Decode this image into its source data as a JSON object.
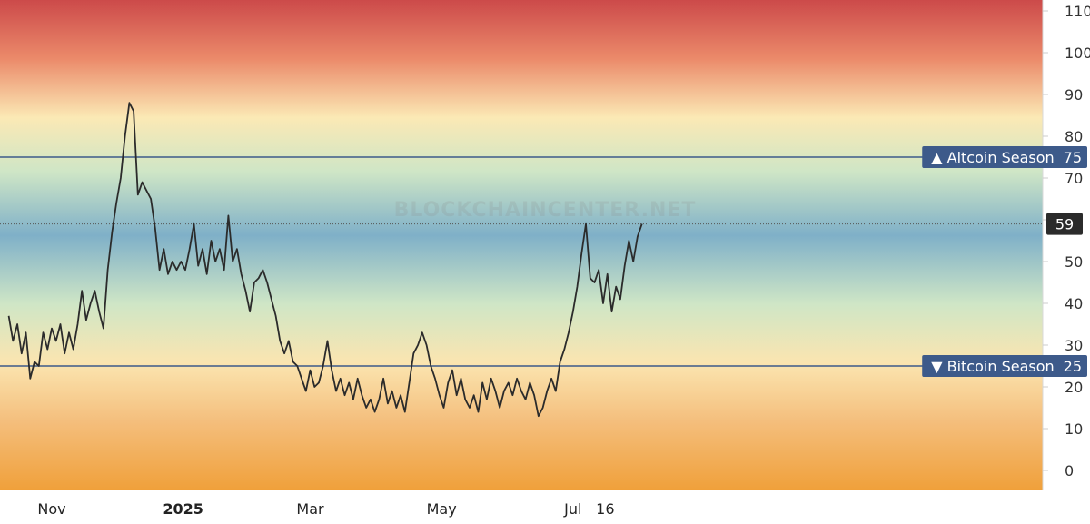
{
  "watermark": "BLOCKCHAINCENTER.NET",
  "colors": {
    "line": "#2b2b2b",
    "threshold_line": "#3d5a8a",
    "tag_bg": "#3d5a8a",
    "current_tag_bg": "#2b2b2b",
    "gradient": [
      "#cc4a4a",
      "#eb8a6a",
      "#fbe9b5",
      "#cfe6c6",
      "#7fb0c8",
      "#cfe6c6",
      "#fbe5b0",
      "#f4be7c",
      "#f0a03a"
    ]
  },
  "chart_data": {
    "type": "line",
    "title": "",
    "xlabel": "",
    "ylabel": "",
    "ylim": [
      -5,
      114
    ],
    "y_ticks": [
      "0",
      "10",
      "20",
      "30",
      "40",
      "50",
      "60",
      "70",
      "80",
      "90",
      "100",
      "110"
    ],
    "x_ticks": [
      {
        "label": "Nov",
        "date": "2024-11-01",
        "bold": false
      },
      {
        "label": "2025",
        "date": "2025-01-01",
        "bold": true
      },
      {
        "label": "Mar",
        "date": "2025-03-01",
        "bold": false
      },
      {
        "label": "May",
        "date": "2025-05-01",
        "bold": false
      },
      {
        "label": "Jul",
        "date": "2025-07-01",
        "bold": false
      },
      {
        "label": "16",
        "date": "2025-07-16",
        "bold": false
      }
    ],
    "thresholds": [
      {
        "label": "▲ Altcoin Season",
        "value": "75"
      },
      {
        "label": "▼ Bitcoin Season",
        "value": "25"
      }
    ],
    "current_value": "59",
    "grid": false,
    "series": [
      {
        "points": [
          [
            "2024-10-12",
            37
          ],
          [
            "2024-10-14",
            31
          ],
          [
            "2024-10-16",
            35
          ],
          [
            "2024-10-18",
            28
          ],
          [
            "2024-10-20",
            33
          ],
          [
            "2024-10-22",
            22
          ],
          [
            "2024-10-24",
            26
          ],
          [
            "2024-10-26",
            25
          ],
          [
            "2024-10-28",
            33
          ],
          [
            "2024-10-30",
            29
          ],
          [
            "2024-11-01",
            34
          ],
          [
            "2024-11-03",
            31
          ],
          [
            "2024-11-05",
            35
          ],
          [
            "2024-11-07",
            28
          ],
          [
            "2024-11-09",
            33
          ],
          [
            "2024-11-11",
            29
          ],
          [
            "2024-11-13",
            35
          ],
          [
            "2024-11-15",
            43
          ],
          [
            "2024-11-17",
            36
          ],
          [
            "2024-11-19",
            40
          ],
          [
            "2024-11-21",
            43
          ],
          [
            "2024-11-23",
            38
          ],
          [
            "2024-11-25",
            34
          ],
          [
            "2024-11-27",
            48
          ],
          [
            "2024-11-29",
            57
          ],
          [
            "2024-12-01",
            64
          ],
          [
            "2024-12-03",
            70
          ],
          [
            "2024-12-05",
            80
          ],
          [
            "2024-12-07",
            88
          ],
          [
            "2024-12-09",
            86
          ],
          [
            "2024-12-11",
            66
          ],
          [
            "2024-12-13",
            69
          ],
          [
            "2024-12-15",
            67
          ],
          [
            "2024-12-17",
            65
          ],
          [
            "2024-12-19",
            58
          ],
          [
            "2024-12-21",
            48
          ],
          [
            "2024-12-23",
            53
          ],
          [
            "2024-12-25",
            47
          ],
          [
            "2024-12-27",
            50
          ],
          [
            "2024-12-29",
            48
          ],
          [
            "2024-12-31",
            50
          ],
          [
            "2025-01-02",
            48
          ],
          [
            "2025-01-04",
            53
          ],
          [
            "2025-01-06",
            59
          ],
          [
            "2025-01-08",
            49
          ],
          [
            "2025-01-10",
            53
          ],
          [
            "2025-01-12",
            47
          ],
          [
            "2025-01-14",
            55
          ],
          [
            "2025-01-16",
            50
          ],
          [
            "2025-01-18",
            53
          ],
          [
            "2025-01-20",
            48
          ],
          [
            "2025-01-22",
            61
          ],
          [
            "2025-01-24",
            50
          ],
          [
            "2025-01-26",
            53
          ],
          [
            "2025-01-28",
            47
          ],
          [
            "2025-01-30",
            43
          ],
          [
            "2025-02-01",
            38
          ],
          [
            "2025-02-03",
            45
          ],
          [
            "2025-02-05",
            46
          ],
          [
            "2025-02-07",
            48
          ],
          [
            "2025-02-09",
            45
          ],
          [
            "2025-02-11",
            41
          ],
          [
            "2025-02-13",
            37
          ],
          [
            "2025-02-15",
            31
          ],
          [
            "2025-02-17",
            28
          ],
          [
            "2025-02-19",
            31
          ],
          [
            "2025-02-21",
            26
          ],
          [
            "2025-02-23",
            25
          ],
          [
            "2025-02-25",
            22
          ],
          [
            "2025-02-27",
            19
          ],
          [
            "2025-03-01",
            24
          ],
          [
            "2025-03-03",
            20
          ],
          [
            "2025-03-05",
            21
          ],
          [
            "2025-03-07",
            25
          ],
          [
            "2025-03-09",
            31
          ],
          [
            "2025-03-11",
            24
          ],
          [
            "2025-03-13",
            19
          ],
          [
            "2025-03-15",
            22
          ],
          [
            "2025-03-17",
            18
          ],
          [
            "2025-03-19",
            21
          ],
          [
            "2025-03-21",
            17
          ],
          [
            "2025-03-23",
            22
          ],
          [
            "2025-03-25",
            18
          ],
          [
            "2025-03-27",
            15
          ],
          [
            "2025-03-29",
            17
          ],
          [
            "2025-03-31",
            14
          ],
          [
            "2025-04-02",
            17
          ],
          [
            "2025-04-04",
            22
          ],
          [
            "2025-04-06",
            16
          ],
          [
            "2025-04-08",
            19
          ],
          [
            "2025-04-10",
            15
          ],
          [
            "2025-04-12",
            18
          ],
          [
            "2025-04-14",
            14
          ],
          [
            "2025-04-16",
            21
          ],
          [
            "2025-04-18",
            28
          ],
          [
            "2025-04-20",
            30
          ],
          [
            "2025-04-22",
            33
          ],
          [
            "2025-04-24",
            30
          ],
          [
            "2025-04-26",
            25
          ],
          [
            "2025-04-28",
            22
          ],
          [
            "2025-04-30",
            18
          ],
          [
            "2025-05-02",
            15
          ],
          [
            "2025-05-04",
            21
          ],
          [
            "2025-05-06",
            24
          ],
          [
            "2025-05-08",
            18
          ],
          [
            "2025-05-10",
            22
          ],
          [
            "2025-05-12",
            17
          ],
          [
            "2025-05-14",
            15
          ],
          [
            "2025-05-16",
            18
          ],
          [
            "2025-05-18",
            14
          ],
          [
            "2025-05-20",
            21
          ],
          [
            "2025-05-22",
            17
          ],
          [
            "2025-05-24",
            22
          ],
          [
            "2025-05-26",
            19
          ],
          [
            "2025-05-28",
            15
          ],
          [
            "2025-05-30",
            19
          ],
          [
            "2025-06-01",
            21
          ],
          [
            "2025-06-03",
            18
          ],
          [
            "2025-06-05",
            22
          ],
          [
            "2025-06-07",
            19
          ],
          [
            "2025-06-09",
            17
          ],
          [
            "2025-06-11",
            21
          ],
          [
            "2025-06-13",
            18
          ],
          [
            "2025-06-15",
            13
          ],
          [
            "2025-06-17",
            15
          ],
          [
            "2025-06-19",
            19
          ],
          [
            "2025-06-21",
            22
          ],
          [
            "2025-06-23",
            19
          ],
          [
            "2025-06-25",
            26
          ],
          [
            "2025-06-27",
            29
          ],
          [
            "2025-06-29",
            33
          ],
          [
            "2025-07-01",
            38
          ],
          [
            "2025-07-03",
            44
          ],
          [
            "2025-07-05",
            52
          ],
          [
            "2025-07-07",
            59
          ],
          [
            "2025-07-09",
            46
          ],
          [
            "2025-07-11",
            45
          ],
          [
            "2025-07-13",
            48
          ],
          [
            "2025-07-15",
            40
          ],
          [
            "2025-07-17",
            47
          ],
          [
            "2025-07-19",
            38
          ],
          [
            "2025-07-21",
            44
          ],
          [
            "2025-07-23",
            41
          ],
          [
            "2025-07-25",
            49
          ],
          [
            "2025-07-27",
            55
          ],
          [
            "2025-07-29",
            50
          ],
          [
            "2025-07-31",
            56
          ],
          [
            "2025-08-02",
            59
          ]
        ]
      }
    ]
  }
}
